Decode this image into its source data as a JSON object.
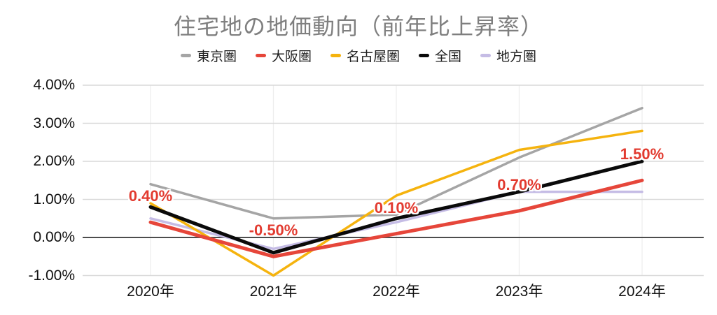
{
  "title": "住宅地の地価動向（前年比上昇率）",
  "chart_data": {
    "type": "line",
    "title": "住宅地の地価動向（前年比上昇率）",
    "categories": [
      "2020年",
      "2021年",
      "2022年",
      "2023年",
      "2024年"
    ],
    "unit": "%",
    "ylim": [
      -1.0,
      4.0
    ],
    "y_ticks": [
      4,
      3,
      2,
      1,
      0,
      -1
    ],
    "y_tick_labels": [
      "4.00%",
      "3.00%",
      "2.00%",
      "1.00%",
      "0.00%",
      "-1.00%"
    ],
    "grid": "horizontal, zero axis emphasized, faint vertical year lines",
    "legend_position": "top",
    "title_color": "#7f7f7f",
    "gridline_color": "#d9d9d9",
    "zero_line_color": "#4d4d4d",
    "series": [
      {
        "name": "東京圏",
        "color": "#a5a5a5",
        "width": 3.5,
        "values": [
          1.4,
          0.5,
          0.6,
          2.1,
          3.4
        ]
      },
      {
        "name": "大阪圏",
        "color": "#e6463a",
        "width": 5,
        "values": [
          0.4,
          -0.5,
          0.1,
          0.7,
          1.5
        ]
      },
      {
        "name": "名古屋圏",
        "color": "#f5b30e",
        "width": 3.5,
        "values": [
          0.9,
          -1.0,
          1.1,
          2.3,
          2.8
        ]
      },
      {
        "name": "全国",
        "color": "#0a0a0a",
        "width": 5,
        "values": [
          0.8,
          -0.4,
          0.5,
          1.2,
          2.0
        ]
      },
      {
        "name": "地方圏",
        "color": "#c5bce5",
        "width": 3.5,
        "values": [
          0.5,
          -0.3,
          0.4,
          1.2,
          1.2
        ]
      }
    ],
    "point_labels": {
      "series": "大阪圏",
      "color": "#e23b30",
      "labels": [
        {
          "category": "2020年",
          "text": "0.40%"
        },
        {
          "category": "2021年",
          "text": "-0.50%"
        },
        {
          "category": "2022年",
          "text": "0.10%"
        },
        {
          "category": "2023年",
          "text": "0.70%"
        },
        {
          "category": "2024年",
          "text": "1.50%"
        }
      ]
    }
  }
}
